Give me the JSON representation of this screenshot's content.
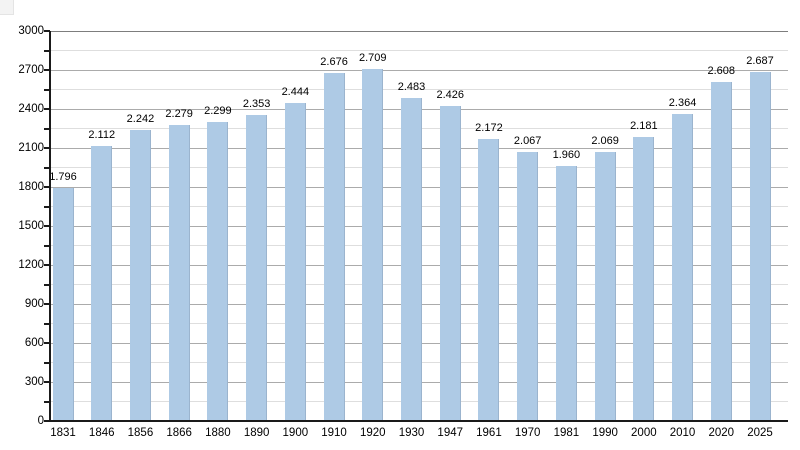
{
  "chart_data": {
    "type": "bar",
    "title": "",
    "xlabel": "",
    "ylabel": "",
    "categories": [
      "1831",
      "1846",
      "1856",
      "1866",
      "1880",
      "1890",
      "1900",
      "1910",
      "1920",
      "1930",
      "1947",
      "1961",
      "1970",
      "1981",
      "1990",
      "2000",
      "2010",
      "2020",
      "2025"
    ],
    "values": [
      1796,
      2112,
      2242,
      2279,
      2299,
      2353,
      2444,
      2676,
      2709,
      2483,
      2426,
      2172,
      2067,
      1960,
      2069,
      2181,
      2364,
      2608,
      2687
    ],
    "value_labels": [
      "1.796",
      "2.112",
      "2.242",
      "2.279",
      "2.299",
      "2.353",
      "2.444",
      "2.676",
      "2.709",
      "2.483",
      "2.426",
      "2.172",
      "2.067",
      "1.960",
      "2.069",
      "2.181",
      "2.364",
      "2.608",
      "2.687"
    ],
    "ylim": [
      0,
      3000
    ],
    "y_major_step": 300,
    "y_minor_step": 150,
    "y_tick_labels": [
      "0",
      "300",
      "600",
      "900",
      "1200",
      "1500",
      "1800",
      "2100",
      "2400",
      "2700",
      "3000"
    ],
    "grid": true,
    "legend": false,
    "colors": {
      "bar_fill": "#aecae5",
      "bar_edge": "#9bb4ce",
      "major_grid": "#ababab",
      "minor_grid": "#dedede",
      "top_grid": "#7d7d7d",
      "axis": "#1a1a1a",
      "text": "#000000",
      "background": "#ffffff"
    }
  }
}
